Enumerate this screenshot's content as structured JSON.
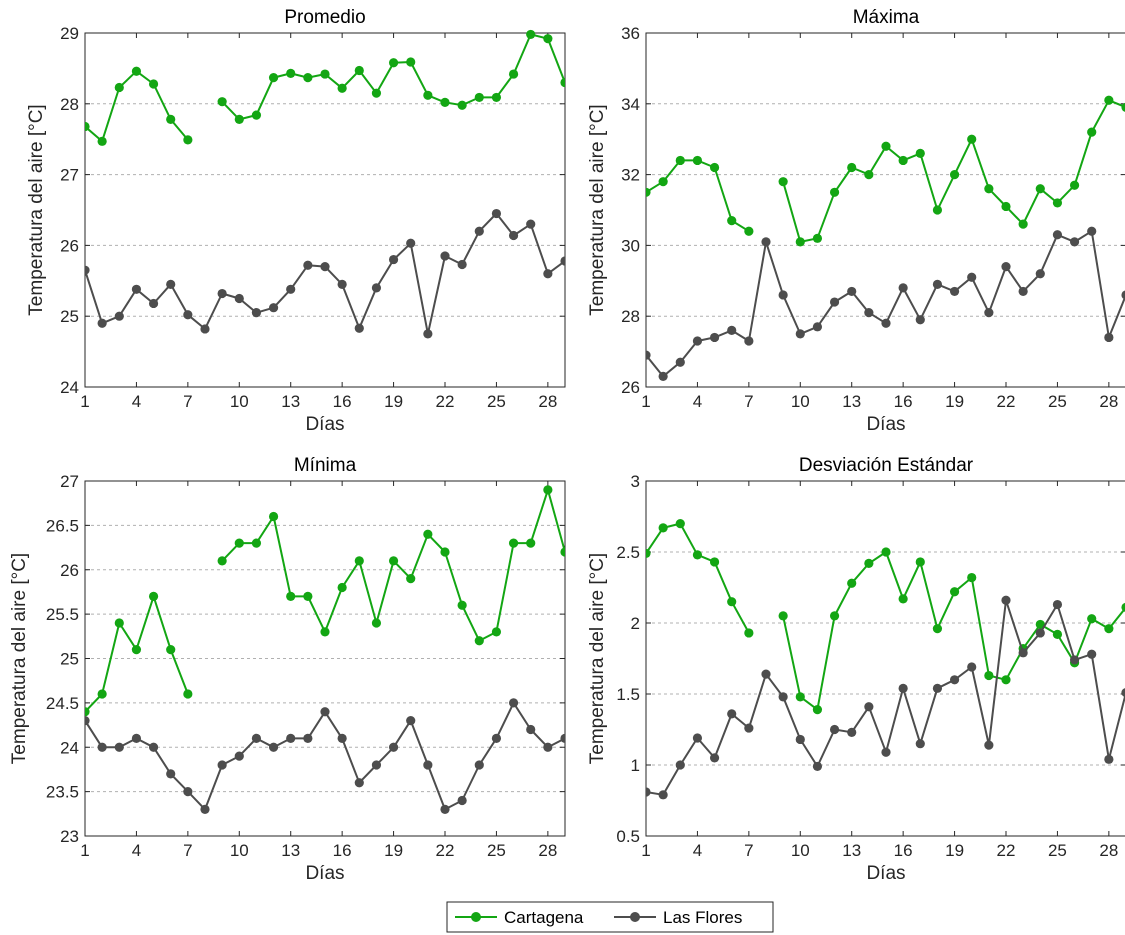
{
  "colors": {
    "cartagena": "#13a613",
    "las_flores": "#4d4d4d",
    "grid": "#b0b0b0",
    "axis": "#262626"
  },
  "legend": {
    "items": [
      "Cartagena",
      "Las Flores"
    ],
    "location": "bottom-center"
  },
  "chart_data": [
    {
      "type": "line",
      "title": "Promedio",
      "xlabel": "Días",
      "ylabel": "Temperatura del aire [°C]",
      "xlim": [
        1,
        29
      ],
      "ylim": [
        24,
        29
      ],
      "xticks": [
        1,
        4,
        7,
        10,
        13,
        16,
        19,
        22,
        25,
        28
      ],
      "yticks": [
        "24",
        "25",
        "26",
        "27",
        "28",
        "29"
      ],
      "grid": "horizontal-dashed",
      "x": [
        1,
        2,
        3,
        4,
        5,
        6,
        7,
        8,
        9,
        10,
        11,
        12,
        13,
        14,
        15,
        16,
        17,
        18,
        19,
        20,
        21,
        22,
        23,
        24,
        25,
        26,
        27,
        28,
        29
      ],
      "series": [
        {
          "name": "Cartagena",
          "values": [
            27.68,
            27.47,
            28.23,
            28.46,
            28.28,
            27.78,
            27.49,
            null,
            28.03,
            27.78,
            27.84,
            28.37,
            28.43,
            28.37,
            28.42,
            28.22,
            28.47,
            28.15,
            28.58,
            28.59,
            28.12,
            28.02,
            27.98,
            28.09,
            28.09,
            28.42,
            28.98,
            28.92,
            28.3
          ]
        },
        {
          "name": "Las Flores",
          "values": [
            25.65,
            24.9,
            25.0,
            25.38,
            25.18,
            25.45,
            25.02,
            24.82,
            25.32,
            25.25,
            25.05,
            25.12,
            25.38,
            25.72,
            25.7,
            25.45,
            24.83,
            25.4,
            25.8,
            26.03,
            24.75,
            25.85,
            25.73,
            26.2,
            26.45,
            26.14,
            26.3,
            25.6,
            25.78
          ]
        }
      ]
    },
    {
      "type": "line",
      "title": "Máxima",
      "xlabel": "Días",
      "ylabel": "Temperatura del aire [°C]",
      "xlim": [
        1,
        29
      ],
      "ylim": [
        26,
        36
      ],
      "xticks": [
        1,
        4,
        7,
        10,
        13,
        16,
        19,
        22,
        25,
        28
      ],
      "yticks": [
        "26",
        "28",
        "30",
        "32",
        "34",
        "36"
      ],
      "grid": "horizontal-dashed",
      "x": [
        1,
        2,
        3,
        4,
        5,
        6,
        7,
        8,
        9,
        10,
        11,
        12,
        13,
        14,
        15,
        16,
        17,
        18,
        19,
        20,
        21,
        22,
        23,
        24,
        25,
        26,
        27,
        28,
        29
      ],
      "series": [
        {
          "name": "Cartagena",
          "values": [
            31.5,
            31.8,
            32.4,
            32.4,
            32.2,
            30.7,
            30.4,
            null,
            31.8,
            30.1,
            30.2,
            31.5,
            32.2,
            32.0,
            32.8,
            32.4,
            32.6,
            31.0,
            32.0,
            33.0,
            31.6,
            31.1,
            30.6,
            31.6,
            31.2,
            31.7,
            33.2,
            34.1,
            33.9
          ]
        },
        {
          "name": "Las Flores",
          "values": [
            26.9,
            26.3,
            26.7,
            27.3,
            27.4,
            27.6,
            27.3,
            30.1,
            28.6,
            27.5,
            27.7,
            28.4,
            28.7,
            28.1,
            27.8,
            28.8,
            27.9,
            28.9,
            28.7,
            29.1,
            28.1,
            29.4,
            28.7,
            29.2,
            30.3,
            30.1,
            30.4,
            27.4,
            28.6
          ]
        }
      ]
    },
    {
      "type": "line",
      "title": "Mínima",
      "xlabel": "Días",
      "ylabel": "Temperatura del aire [°C]",
      "xlim": [
        1,
        29
      ],
      "ylim": [
        23,
        27
      ],
      "xticks": [
        1,
        4,
        7,
        10,
        13,
        16,
        19,
        22,
        25,
        28
      ],
      "yticks": [
        "23",
        "23.5",
        "24",
        "24.5",
        "25",
        "25.5",
        "26",
        "26.5",
        "27"
      ],
      "grid": "horizontal-dashed",
      "x": [
        1,
        2,
        3,
        4,
        5,
        6,
        7,
        8,
        9,
        10,
        11,
        12,
        13,
        14,
        15,
        16,
        17,
        18,
        19,
        20,
        21,
        22,
        23,
        24,
        25,
        26,
        27,
        28,
        29
      ],
      "series": [
        {
          "name": "Cartagena",
          "values": [
            24.4,
            24.6,
            25.4,
            25.1,
            25.7,
            25.1,
            24.6,
            null,
            26.1,
            26.3,
            26.3,
            26.6,
            25.7,
            25.7,
            25.3,
            25.8,
            26.1,
            25.4,
            26.1,
            25.9,
            26.4,
            26.2,
            25.6,
            25.2,
            25.3,
            26.3,
            26.3,
            26.9,
            26.2
          ]
        },
        {
          "name": "Las Flores",
          "values": [
            24.3,
            24.0,
            24.0,
            24.1,
            24.0,
            23.7,
            23.5,
            23.3,
            23.8,
            23.9,
            24.1,
            24.0,
            24.1,
            24.1,
            24.4,
            24.1,
            23.6,
            23.8,
            24.0,
            24.3,
            23.8,
            23.3,
            23.4,
            23.8,
            24.1,
            24.5,
            24.2,
            24.0,
            24.1
          ]
        }
      ]
    },
    {
      "type": "line",
      "title": "Desviación Estándar",
      "xlabel": "Días",
      "ylabel": "Temperatura del aire [°C]",
      "xlim": [
        1,
        29
      ],
      "ylim": [
        0.5,
        3
      ],
      "xticks": [
        1,
        4,
        7,
        10,
        13,
        16,
        19,
        22,
        25,
        28
      ],
      "yticks": [
        "0.5",
        "1",
        "1.5",
        "2",
        "2.5",
        "3"
      ],
      "grid": "horizontal-dashed",
      "x": [
        1,
        2,
        3,
        4,
        5,
        6,
        7,
        8,
        9,
        10,
        11,
        12,
        13,
        14,
        15,
        16,
        17,
        18,
        19,
        20,
        21,
        22,
        23,
        24,
        25,
        26,
        27,
        28,
        29
      ],
      "series": [
        {
          "name": "Cartagena",
          "values": [
            2.49,
            2.67,
            2.7,
            2.48,
            2.43,
            2.15,
            1.93,
            null,
            2.05,
            1.48,
            1.39,
            2.05,
            2.28,
            2.42,
            2.5,
            2.17,
            2.43,
            1.96,
            2.22,
            2.32,
            1.63,
            1.6,
            1.82,
            1.99,
            1.92,
            1.72,
            2.03,
            1.96,
            2.11
          ]
        },
        {
          "name": "Las Flores",
          "values": [
            0.81,
            0.79,
            1.0,
            1.19,
            1.05,
            1.36,
            1.26,
            1.64,
            1.48,
            1.18,
            0.99,
            1.25,
            1.23,
            1.41,
            1.09,
            1.54,
            1.15,
            1.54,
            1.6,
            1.69,
            1.14,
            2.16,
            1.79,
            1.93,
            2.13,
            1.74,
            1.78,
            1.04,
            1.51
          ]
        }
      ]
    }
  ]
}
